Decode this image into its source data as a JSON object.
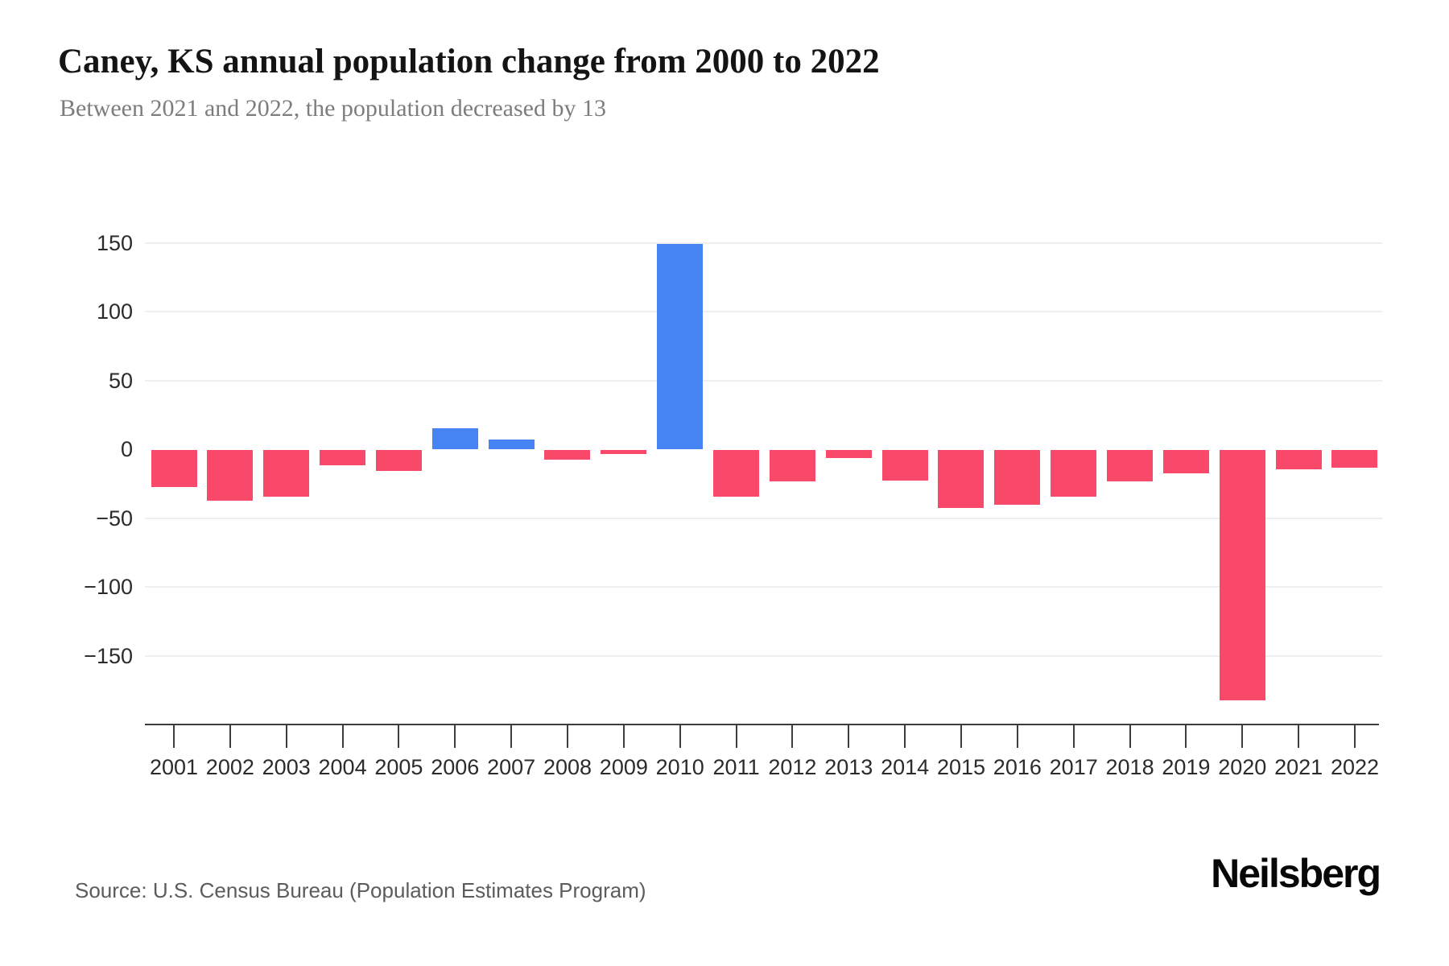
{
  "header": {
    "title": "Caney, KS annual population change from 2000 to 2022",
    "subtitle": "Between 2021 and 2022, the population decreased by 13"
  },
  "footer": {
    "source": "Source: U.S. Census Bureau (Population Estimates Program)",
    "brand": "Neilsberg"
  },
  "chart_data": {
    "type": "bar",
    "title": "Caney, KS annual population change from 2000 to 2022",
    "subtitle": "Between 2021 and 2022, the population decreased by 13",
    "categories": [
      "2001",
      "2002",
      "2003",
      "2004",
      "2005",
      "2006",
      "2007",
      "2008",
      "2009",
      "2010",
      "2011",
      "2012",
      "2013",
      "2014",
      "2015",
      "2016",
      "2017",
      "2018",
      "2019",
      "2020",
      "2021",
      "2022"
    ],
    "values": [
      -27,
      -37,
      -34,
      -11,
      -15,
      15,
      7,
      -7,
      -3,
      149,
      -34,
      -23,
      -6,
      -22,
      -42,
      -40,
      -34,
      -23,
      -17,
      -182,
      -14,
      -13
    ],
    "xlabel": "",
    "ylabel": "",
    "ylim": [
      -200,
      175
    ],
    "yticks": [
      150,
      100,
      50,
      0,
      -50,
      -100,
      -150
    ],
    "grid": "horizontal",
    "legend": "none",
    "positive_color": "#4684f3",
    "negative_color": "#f9496b",
    "axis_color": "#3c3c3c",
    "gridline_color": "#efefef"
  }
}
